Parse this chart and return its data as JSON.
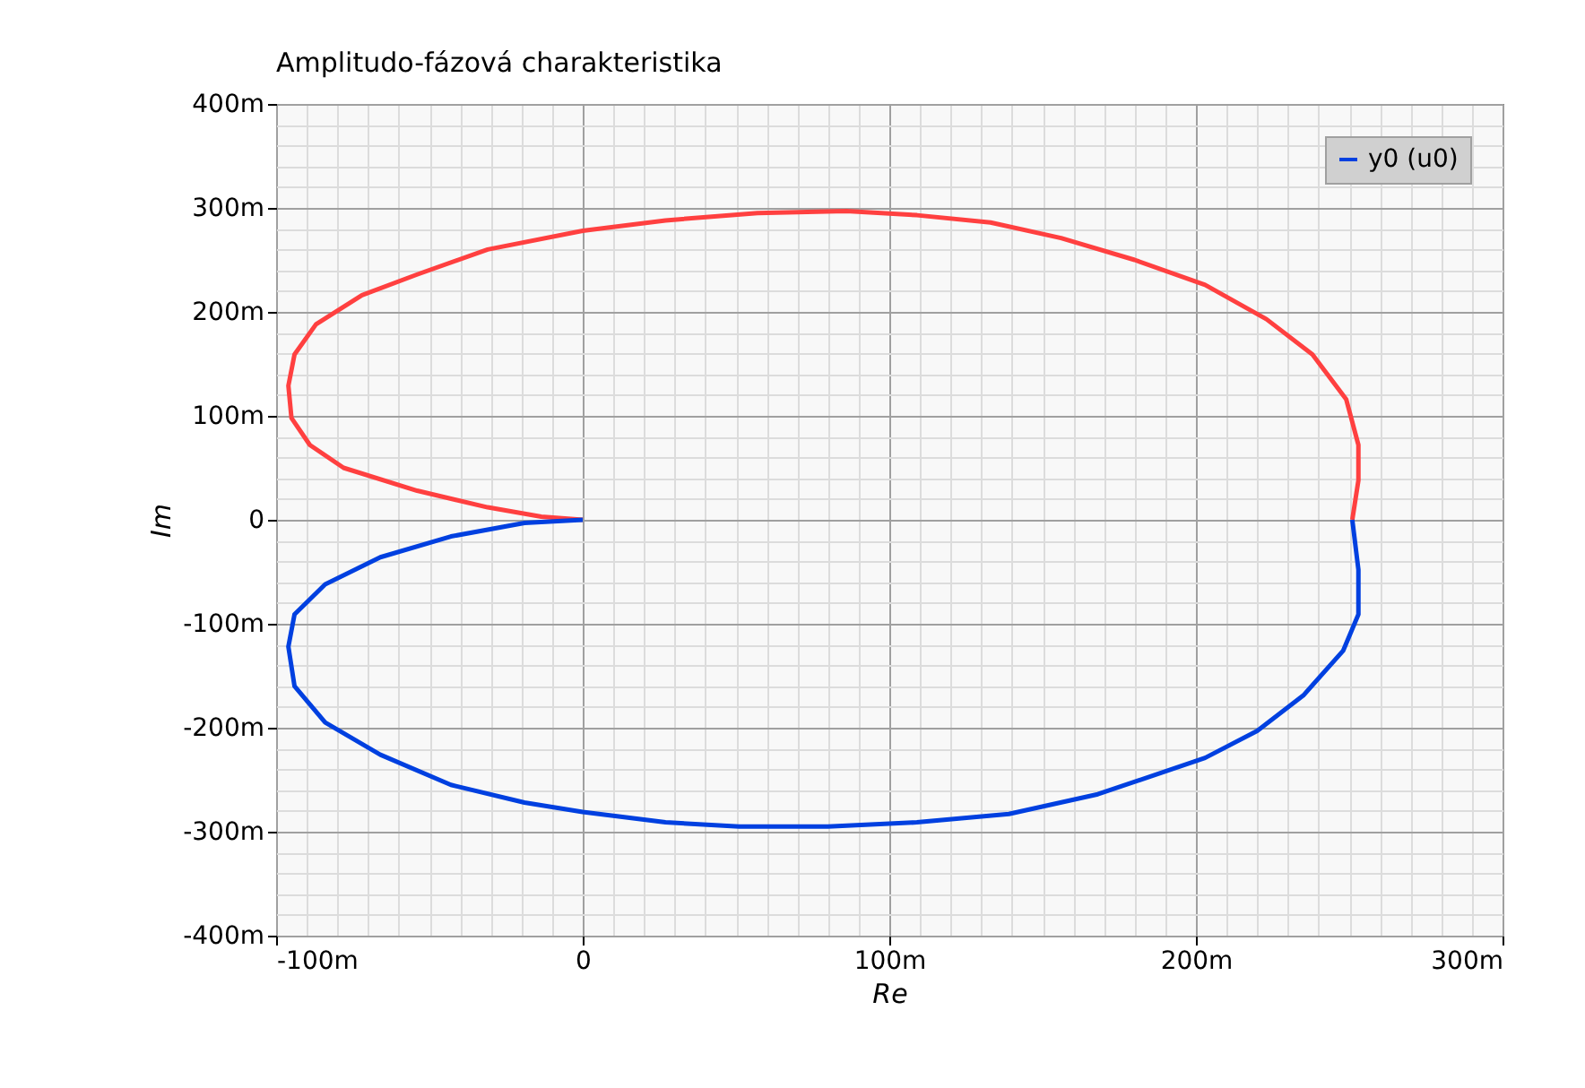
{
  "chart_data": {
    "type": "line",
    "title": "Amplitudo-fázová charakteristika",
    "xlabel": "Re",
    "ylabel": "Im",
    "xlim": [
      -100,
      300
    ],
    "ylim": [
      -400,
      400
    ],
    "xticks": [
      {
        "value": -100,
        "label": "-100m"
      },
      {
        "value": -90,
        "label": null
      },
      {
        "value": -80,
        "label": null
      },
      {
        "value": -70,
        "label": null
      },
      {
        "value": -60,
        "label": null
      },
      {
        "value": -50,
        "label": null
      },
      {
        "value": -40,
        "label": null
      },
      {
        "value": -30,
        "label": null
      },
      {
        "value": -20,
        "label": null
      },
      {
        "value": -10,
        "label": null
      },
      0,
      {
        "value": 10,
        "label": null
      },
      {
        "value": 20,
        "label": null
      },
      {
        "value": 30,
        "label": null
      },
      {
        "value": 40,
        "label": null
      },
      {
        "value": 50,
        "label": null
      },
      {
        "value": 60,
        "label": null
      },
      {
        "value": 70,
        "label": null
      },
      {
        "value": 80,
        "label": null
      },
      {
        "value": 90,
        "label": null
      },
      {
        "value": 100,
        "label": "100m"
      },
      {
        "value": 110,
        "label": null
      },
      {
        "value": 120,
        "label": null
      },
      {
        "value": 130,
        "label": null
      },
      {
        "value": 140,
        "label": null
      },
      {
        "value": 150,
        "label": null
      },
      {
        "value": 160,
        "label": null
      },
      {
        "value": 170,
        "label": null
      },
      {
        "value": 180,
        "label": null
      },
      {
        "value": 190,
        "label": null
      },
      {
        "value": 200,
        "label": "200m"
      },
      {
        "value": 210,
        "label": null
      },
      {
        "value": 220,
        "label": null
      },
      {
        "value": 230,
        "label": null
      },
      {
        "value": 240,
        "label": null
      },
      {
        "value": 250,
        "label": null
      },
      {
        "value": 260,
        "label": null
      },
      {
        "value": 270,
        "label": null
      },
      {
        "value": 280,
        "label": null
      },
      {
        "value": 290,
        "label": null
      },
      {
        "value": 300,
        "label": "300m"
      }
    ],
    "yticks": [
      {
        "value": -400,
        "label": "-400m"
      },
      {
        "value": -380,
        "label": null
      },
      {
        "value": -360,
        "label": null
      },
      {
        "value": -340,
        "label": null
      },
      {
        "value": -320,
        "label": null
      },
      {
        "value": -300,
        "label": "-300m"
      },
      {
        "value": -280,
        "label": null
      },
      {
        "value": -260,
        "label": null
      },
      {
        "value": -240,
        "label": null
      },
      {
        "value": -220,
        "label": null
      },
      {
        "value": -200,
        "label": "-200m"
      },
      {
        "value": -180,
        "label": null
      },
      {
        "value": -160,
        "label": null
      },
      {
        "value": -140,
        "label": null
      },
      {
        "value": -120,
        "label": null
      },
      {
        "value": -100,
        "label": "-100m"
      },
      {
        "value": -80,
        "label": null
      },
      {
        "value": -60,
        "label": null
      },
      {
        "value": -40,
        "label": null
      },
      {
        "value": -20,
        "label": null
      },
      0,
      {
        "value": 20,
        "label": null
      },
      {
        "value": 40,
        "label": null
      },
      {
        "value": 60,
        "label": null
      },
      {
        "value": 80,
        "label": null
      },
      {
        "value": 100,
        "label": "100m"
      },
      {
        "value": 120,
        "label": null
      },
      {
        "value": 140,
        "label": null
      },
      {
        "value": 160,
        "label": null
      },
      {
        "value": 180,
        "label": null
      },
      {
        "value": 200,
        "label": "200m"
      },
      {
        "value": 220,
        "label": null
      },
      {
        "value": 240,
        "label": null
      },
      {
        "value": 260,
        "label": null
      },
      {
        "value": 280,
        "label": null
      },
      {
        "value": 300,
        "label": "300m"
      },
      {
        "value": 320,
        "label": null
      },
      {
        "value": 340,
        "label": null
      },
      {
        "value": 360,
        "label": null
      },
      {
        "value": 380,
        "label": null
      },
      {
        "value": 400,
        "label": "400m"
      }
    ],
    "grid": true,
    "legend": "top right",
    "marker": "none",
    "line_style": "solid",
    "series": [
      {
        "color": "#ff4040",
        "x": [
          0,
          -13.5,
          -31,
          -54,
          -78,
          -89,
          -95,
          -96,
          -94,
          -87,
          -72,
          -54,
          -31,
          0,
          27,
          57,
          86,
          109,
          133,
          156,
          180,
          203,
          223,
          238,
          249,
          253,
          253,
          251
        ],
        "values": [
          0,
          3,
          12,
          28,
          50,
          72,
          98,
          129,
          159,
          188,
          216,
          236,
          260,
          278,
          288,
          295,
          297,
          293,
          286,
          271,
          250,
          226,
          193,
          159,
          116,
          72,
          38,
          0
        ]
      },
      {
        "name": "y0 (u0)",
        "color": "#0040e0",
        "x": [
          0,
          -19,
          -43,
          -66,
          -84,
          -94,
          -96,
          -94,
          -84,
          -66,
          -43,
          -19,
          0,
          27,
          51,
          80,
          109,
          139,
          168,
          203,
          220,
          235,
          248,
          253,
          253,
          251
        ],
        "values": [
          0,
          -3,
          -16,
          -36,
          -62,
          -91,
          -122,
          -160,
          -195,
          -226,
          -255,
          -272,
          -281,
          -291,
          -295,
          -295,
          -291,
          -283,
          -264,
          -229,
          -203,
          -169,
          -126,
          -91,
          -48,
          0
        ]
      }
    ]
  }
}
